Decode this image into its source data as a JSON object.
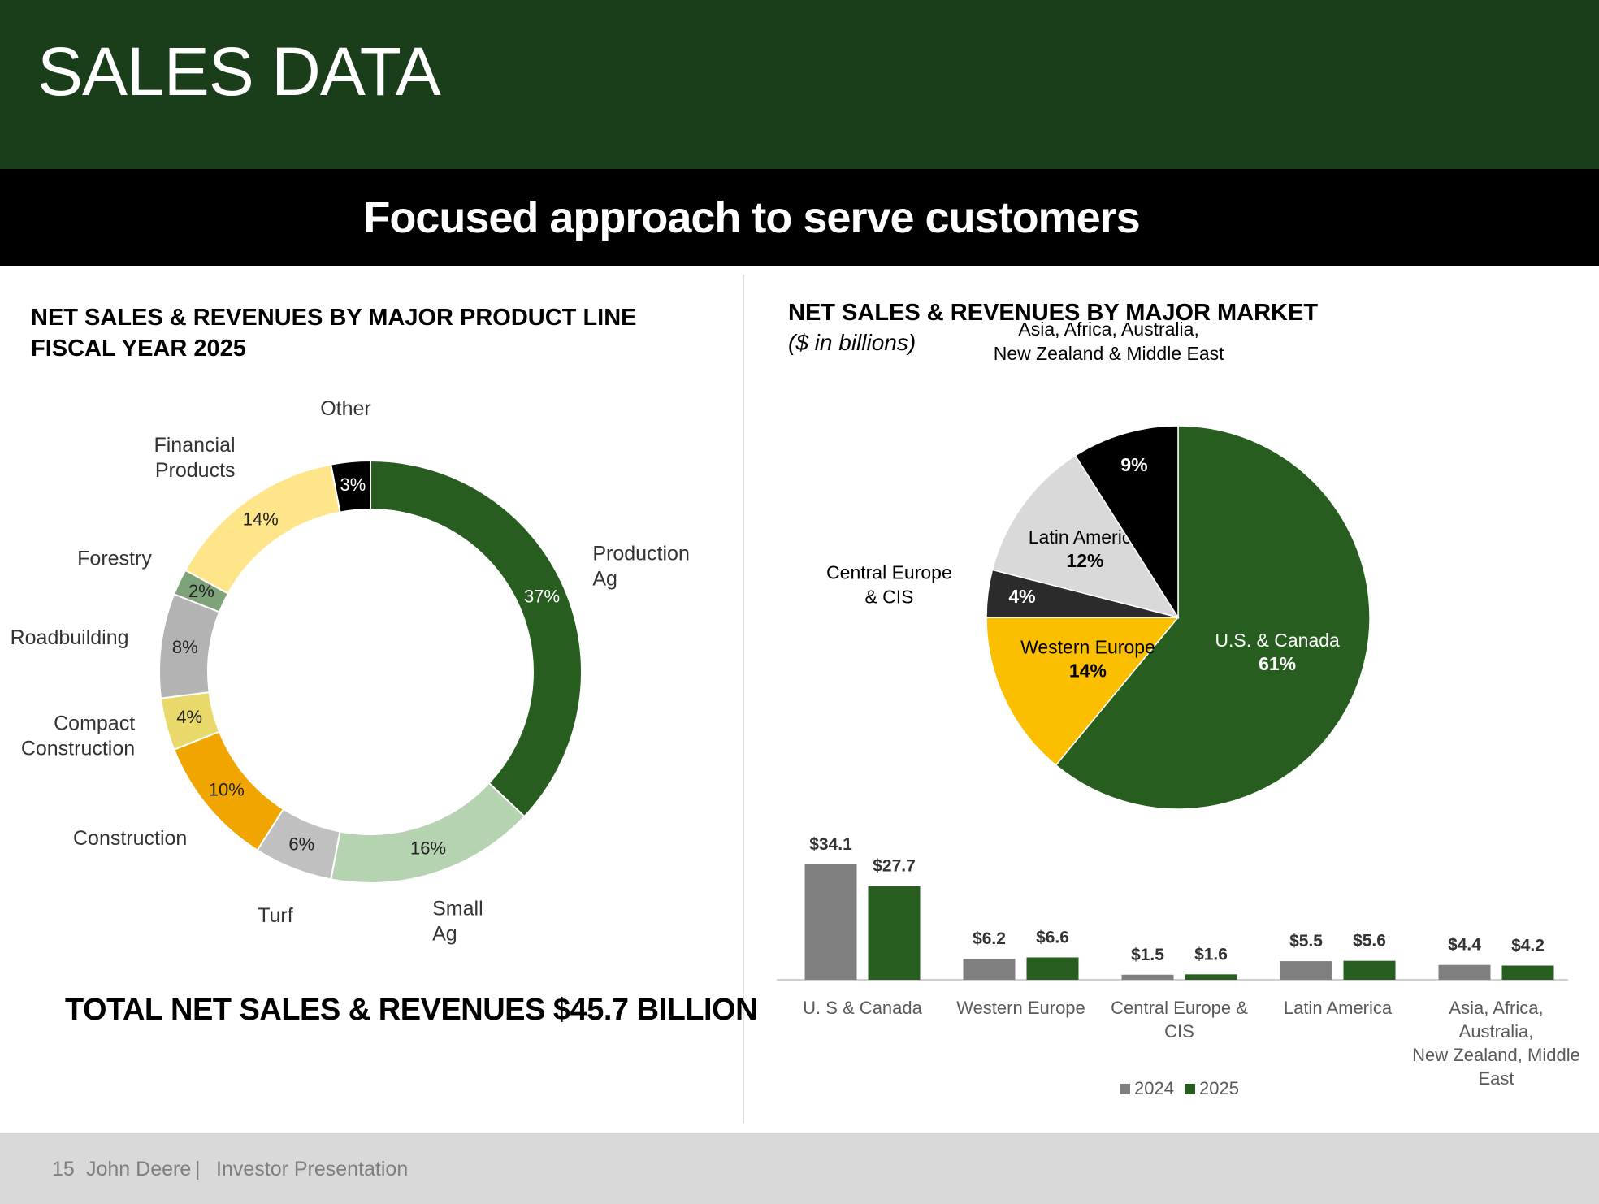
{
  "page": {
    "title": "SALES DATA",
    "subtitle": "Focused approach to serve customers",
    "total_text": "TOTAL NET SALES & REVENUES $45.7 BILLION"
  },
  "left_section": {
    "title_line1": "NET SALES & REVENUES BY MAJOR PRODUCT LINE",
    "title_line2": "FISCAL YEAR 2025"
  },
  "right_section": {
    "title": "NET SALES & REVENUES BY MAJOR MARKET",
    "units": "($ in billions)"
  },
  "footer": {
    "page_number": "15",
    "company": "John Deere",
    "separator": "|",
    "doc": "Investor Presentation"
  },
  "colors": {
    "header_green": "#1b3e1a",
    "deere_green": "#275e20",
    "gray_bar": "#808080"
  },
  "chart_data": [
    {
      "type": "pie",
      "variant": "donut",
      "slices": [
        {
          "label": [
            "Production",
            "Ag"
          ],
          "value": 37,
          "value_label": "37%",
          "color": "#275e20"
        },
        {
          "label": [
            "Small",
            "Ag"
          ],
          "value": 16,
          "value_label": "16%",
          "color": "#b5d3b0"
        },
        {
          "label": [
            "Turf"
          ],
          "value": 6,
          "value_label": "6%",
          "color": "#c0c0c0"
        },
        {
          "label": [
            "Construction"
          ],
          "value": 10,
          "value_label": "10%",
          "color": "#f0a500"
        },
        {
          "label": [
            "Compact",
            "Construction"
          ],
          "value": 4,
          "value_label": "4%",
          "color": "#e8d96a"
        },
        {
          "label": [
            "Roadbuilding"
          ],
          "value": 8,
          "value_label": "8%",
          "color": "#b3b3b3"
        },
        {
          "label": [
            "Forestry"
          ],
          "value": 2,
          "value_label": "2%",
          "color": "#7ea37a"
        },
        {
          "label": [
            "Financial",
            "Products"
          ],
          "value": 14,
          "value_label": "14%",
          "color": "#ffe58a"
        },
        {
          "label": [
            "Other"
          ],
          "value": 3,
          "value_label": "3%",
          "color": "#000000"
        }
      ]
    },
    {
      "type": "pie",
      "slices": [
        {
          "label": [
            "U.S. & Canada"
          ],
          "value": 61,
          "value_label": "61%",
          "color": "#275e20"
        },
        {
          "label": [
            "Western Europe"
          ],
          "value": 14,
          "value_label": "14%",
          "color": "#fbbf00"
        },
        {
          "label": [
            "Central Europe",
            "& CIS"
          ],
          "value": 4,
          "value_label": "4%",
          "color": "#2b2b2b"
        },
        {
          "label": [
            "Latin America"
          ],
          "value": 12,
          "value_label": "12%",
          "color": "#d9d9d9"
        },
        {
          "label": [
            "Asia, Africa, Australia,",
            "New Zealand & Middle East"
          ],
          "value": 9,
          "value_label": "9%",
          "color": "#000000"
        }
      ]
    },
    {
      "type": "bar",
      "categories": [
        [
          "U. S & Canada"
        ],
        [
          "Western Europe"
        ],
        [
          "Central Europe &",
          "CIS"
        ],
        [
          "Latin America"
        ],
        [
          "Asia, Africa,",
          "Australia,",
          "New Zealand, Middle",
          "East"
        ]
      ],
      "series": [
        {
          "name": "2024",
          "values": [
            34.1,
            6.2,
            1.5,
            5.5,
            4.4
          ],
          "value_labels": [
            "$34.1",
            "$6.2",
            "$1.5",
            "$5.5",
            "$4.4"
          ],
          "color": "#808080"
        },
        {
          "name": "2025",
          "values": [
            27.7,
            6.6,
            1.6,
            5.6,
            4.2
          ],
          "value_labels": [
            "$27.7",
            "$6.6",
            "$1.6",
            "$5.6",
            "$4.2"
          ],
          "color": "#275e20"
        }
      ],
      "legend_position": "bottom",
      "ylim": [
        0,
        34.1
      ]
    }
  ]
}
